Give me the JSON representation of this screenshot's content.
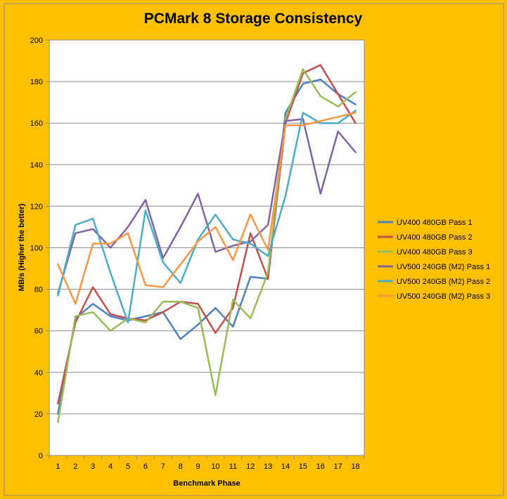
{
  "chart_data": {
    "type": "line",
    "title": "PCMark 8 Storage Consistency",
    "xlabel": "Benchmark Phase",
    "ylabel": "MB/s (Higher the better)",
    "ylim": [
      0,
      200
    ],
    "yticks": [
      0,
      20,
      40,
      60,
      80,
      100,
      120,
      140,
      160,
      180,
      200
    ],
    "x": [
      1,
      2,
      3,
      4,
      5,
      6,
      7,
      8,
      9,
      10,
      11,
      12,
      13,
      14,
      15,
      16,
      17,
      18
    ],
    "grid": "horizontal",
    "legend_position": "right",
    "series": [
      {
        "name": "UV400 480GB Pass 1",
        "color": "#4F81BD",
        "values": [
          20,
          66,
          73,
          67,
          65,
          67,
          69,
          56,
          63,
          71,
          62,
          86,
          85,
          165,
          179,
          181,
          174,
          169
        ]
      },
      {
        "name": "UV400 480GB Pass 2",
        "color": "#C0504D",
        "values": [
          25,
          64,
          81,
          68,
          66,
          65,
          69,
          74,
          73,
          59,
          71,
          107,
          85,
          160,
          184,
          188,
          174,
          160
        ]
      },
      {
        "name": "UV400 480GB Pass 3",
        "color": "#9BBB59",
        "values": [
          16,
          67,
          69,
          60,
          66,
          64,
          74,
          74,
          71,
          29,
          75,
          66,
          88,
          162,
          186,
          173,
          168,
          175
        ]
      },
      {
        "name": "UV500 240GB (M2) Pass 1",
        "color": "#8064A2",
        "values": [
          78,
          107,
          109,
          100,
          110,
          123,
          95,
          110,
          126,
          98,
          101,
          103,
          111,
          161,
          162,
          126,
          156,
          146
        ]
      },
      {
        "name": "UV500 240GB (M2) Pass 2",
        "color": "#4BACC6",
        "values": [
          77,
          111,
          114,
          88,
          64,
          118,
          93,
          83,
          104,
          116,
          104,
          102,
          96,
          125,
          165,
          160,
          160,
          166
        ]
      },
      {
        "name": "UV500 240GB (M2) Pass 3",
        "color": "#F79646",
        "values": [
          92,
          73,
          102,
          102,
          107,
          82,
          81,
          92,
          103,
          110,
          94,
          116,
          99,
          159,
          159,
          161,
          163,
          165
        ]
      }
    ]
  }
}
